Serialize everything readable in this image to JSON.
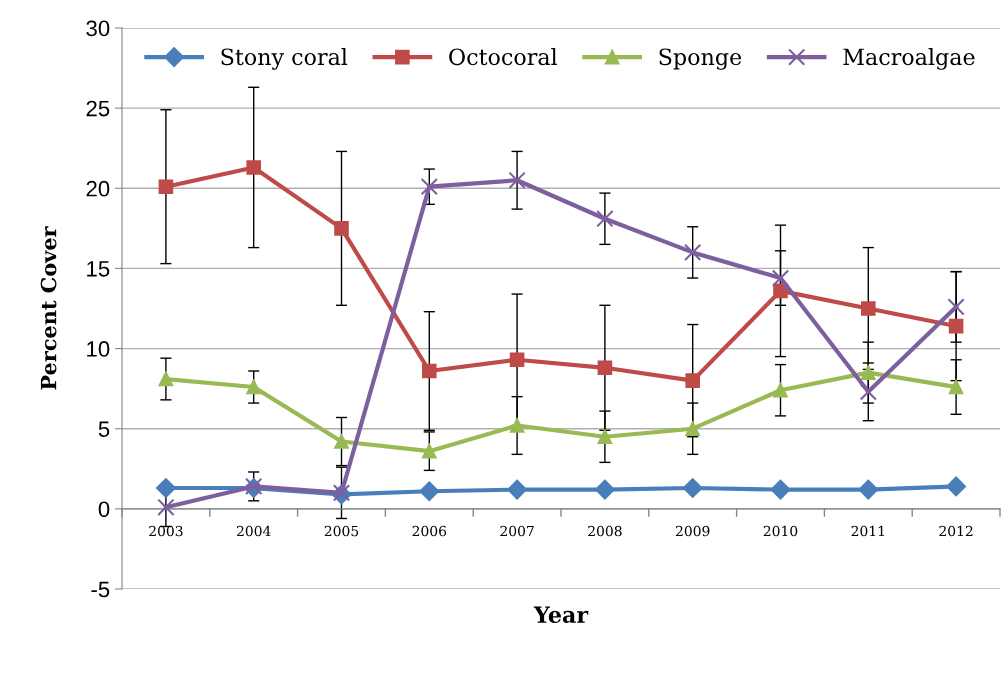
{
  "chart_data": {
    "type": "line",
    "xlabel": "Year",
    "ylabel": "Percent Cover",
    "categories": [
      "2003",
      "2004",
      "2005",
      "2006",
      "2007",
      "2008",
      "2009",
      "2010",
      "2011",
      "2012"
    ],
    "ylim": [
      -5,
      30
    ],
    "yticks": [
      -5,
      0,
      5,
      10,
      15,
      20,
      25,
      30
    ],
    "grid": "y",
    "legend": "top",
    "line_style": "solid",
    "series": [
      {
        "name": "Stony coral",
        "color": "#4a7ebb",
        "marker": "diamond",
        "values": [
          1.3,
          1.3,
          0.9,
          1.1,
          1.2,
          1.2,
          1.3,
          1.2,
          1.2,
          1.4
        ]
      },
      {
        "name": "Octocoral",
        "color": "#be4b48",
        "marker": "square",
        "values": [
          20.1,
          21.3,
          17.5,
          8.6,
          9.3,
          8.8,
          8.0,
          13.6,
          12.5,
          11.4
        ],
        "errors": [
          4.8,
          5.0,
          4.8,
          3.7,
          4.1,
          3.9,
          3.5,
          4.1,
          3.8,
          3.4
        ]
      },
      {
        "name": "Sponge",
        "color": "#98b954",
        "marker": "triangle",
        "values": [
          8.1,
          7.6,
          4.2,
          3.6,
          5.2,
          4.5,
          5.0,
          7.4,
          8.5,
          7.6
        ],
        "errors": [
          1.3,
          1.0,
          1.5,
          1.2,
          1.8,
          1.6,
          1.6,
          1.6,
          1.9,
          1.7
        ]
      },
      {
        "name": "Macroalgae",
        "color": "#7d5fa0",
        "marker": "cross",
        "values": [
          0.1,
          1.4,
          1.0,
          20.1,
          20.5,
          18.1,
          16.0,
          14.4,
          7.3,
          12.6
        ],
        "errors": [
          1.2,
          0.9,
          1.6,
          1.1,
          1.8,
          1.6,
          1.6,
          1.7,
          1.8,
          2.2
        ]
      }
    ]
  }
}
